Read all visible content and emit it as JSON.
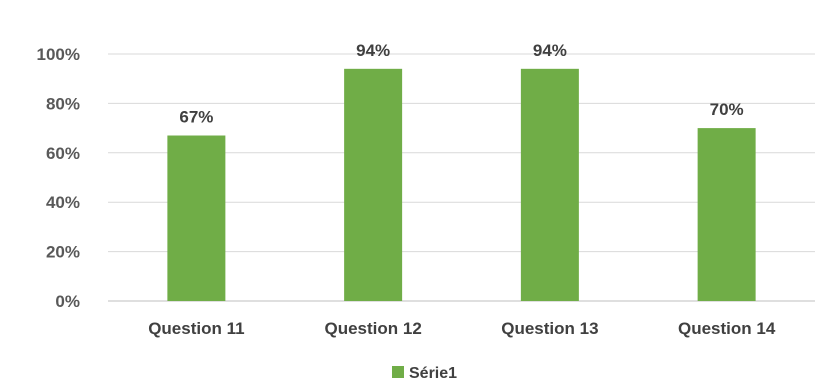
{
  "chart_data": {
    "type": "bar",
    "categories": [
      "Question 11",
      "Question 12",
      "Question 13",
      "Question 14"
    ],
    "series": [
      {
        "name": "Série1",
        "values": [
          67,
          94,
          94,
          70
        ],
        "data_labels": [
          "67%",
          "94%",
          "94%",
          "70%"
        ],
        "color": "#70ad47"
      }
    ],
    "yticks": [
      {
        "value": 0,
        "label": "0%"
      },
      {
        "value": 20,
        "label": "20%"
      },
      {
        "value": 40,
        "label": "40%"
      },
      {
        "value": 60,
        "label": "60%"
      },
      {
        "value": 80,
        "label": "80%"
      },
      {
        "value": 100,
        "label": "100%"
      }
    ],
    "ylim": [
      0,
      100
    ],
    "title": "",
    "xlabel": "",
    "ylabel": "",
    "grid": true,
    "legend": {
      "position": "bottom",
      "entries": [
        "Série1"
      ]
    }
  }
}
